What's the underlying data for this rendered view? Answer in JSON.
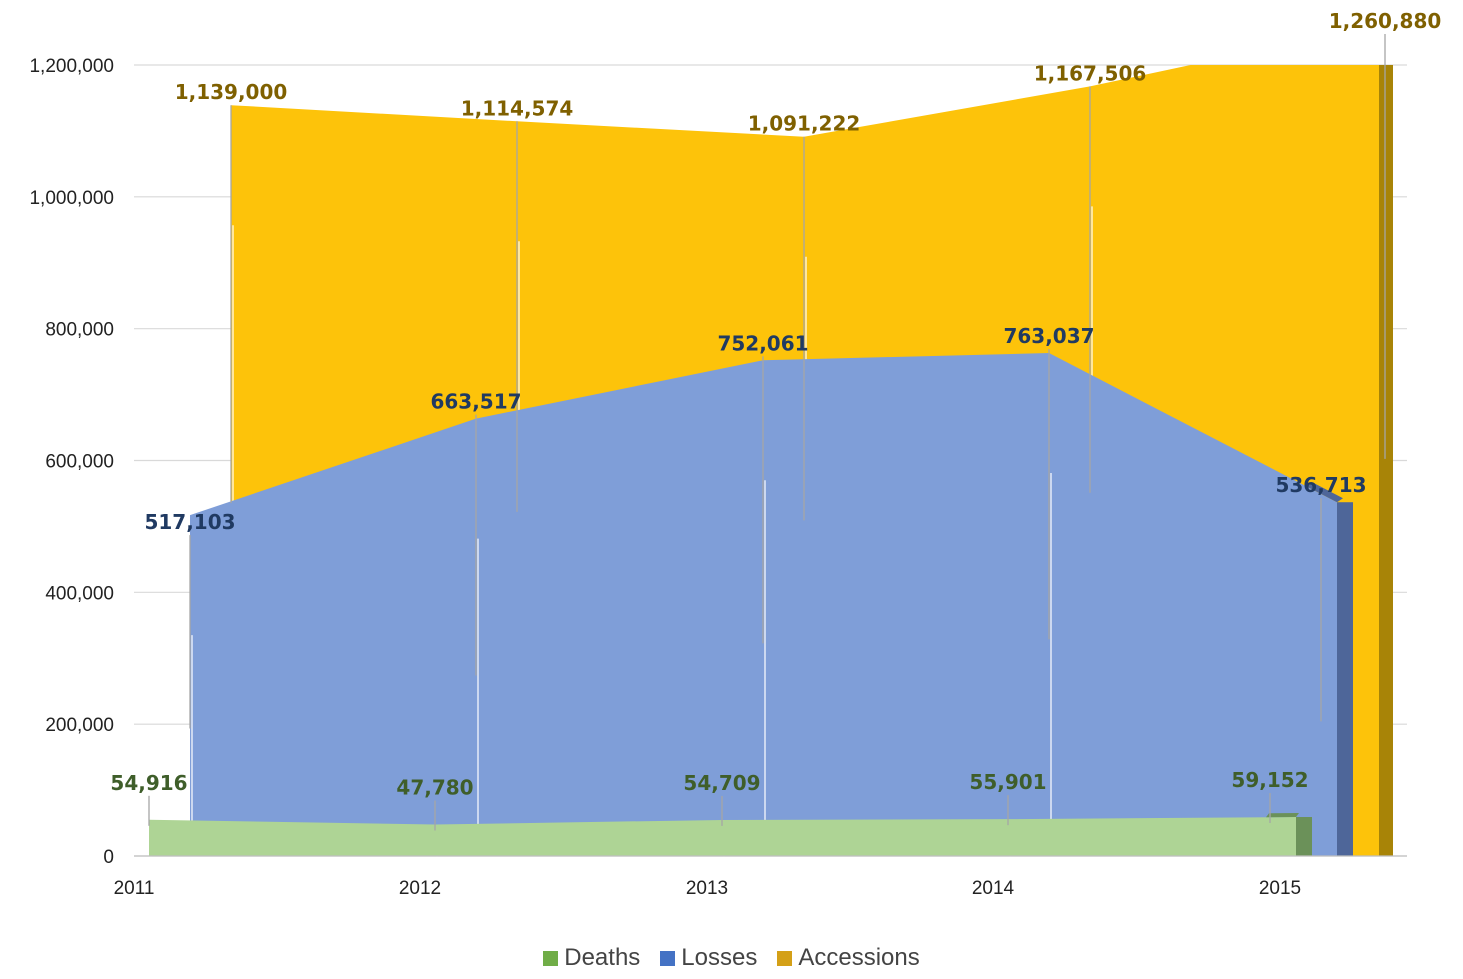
{
  "chart_data": {
    "type": "area",
    "categories": [
      "2011",
      "2012",
      "2013",
      "2014",
      "2015"
    ],
    "y_ticks": [
      "0",
      "200,000",
      "400,000",
      "600,000",
      "800,000",
      "1,000,000",
      "1,200,000"
    ],
    "ylim": [
      0,
      1200000
    ],
    "grid": true,
    "legend_position": "bottom",
    "series": [
      {
        "name": "Deaths",
        "key": "deaths",
        "values": [
          54916,
          47780,
          54709,
          55901,
          59152
        ],
        "labels": [
          "54,916",
          "47,780",
          "54,709",
          "55,901",
          "59,152"
        ],
        "fill": "#aed495",
        "side": "#6b9159",
        "label_color": "#3f5e2a"
      },
      {
        "name": "Losses",
        "key": "losses",
        "values": [
          517103,
          663517,
          752061,
          763037,
          536713
        ],
        "labels": [
          "517,103",
          "663,517",
          "752,061",
          "763,037",
          "536,713"
        ],
        "fill": "#7f9ed8",
        "side": "#4e6699",
        "label_color": "#203a62"
      },
      {
        "name": "Accessions",
        "key": "accessions",
        "values": [
          1139000,
          1114574,
          1091222,
          1167506,
          1260880
        ],
        "labels": [
          "1,139,000",
          "1,114,574",
          "1,091,222",
          "1,167,506",
          "1,260,880"
        ],
        "fill": "#fdc30a",
        "side": "#a88407",
        "label_color": "#7f6000"
      }
    ]
  },
  "legend": {
    "colors": {
      "deaths": "#70ad47",
      "losses": "#4472c4",
      "accessions": "#d4a017"
    }
  }
}
